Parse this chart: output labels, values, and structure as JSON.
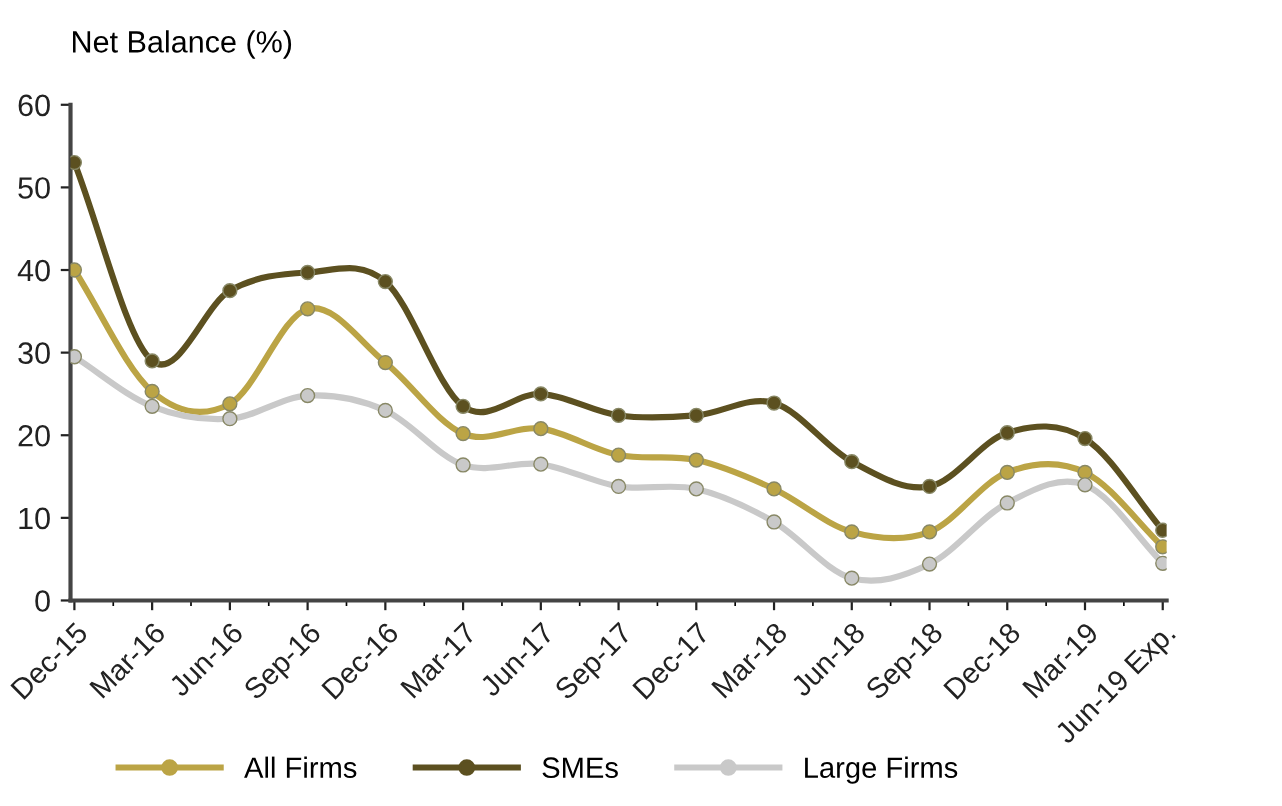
{
  "chart_data": {
    "type": "line",
    "ylabel": "Net Balance (%)",
    "categories": [
      "Dec-15",
      "Mar-16",
      "Jun-16",
      "Sep-16",
      "Dec-16",
      "Mar-17",
      "Jun-17",
      "Sep-17",
      "Dec-17",
      "Mar-18",
      "Jun-18",
      "Sep-18",
      "Dec-18",
      "Mar-19",
      "Jun-19 Exp."
    ],
    "series": [
      {
        "name": "All Firms",
        "color": "#bba445",
        "values": [
          40,
          25.3,
          23.8,
          35.3,
          28.8,
          20.2,
          20.8,
          17.6,
          17,
          13.5,
          8.3,
          8.3,
          15.5,
          15.5,
          6.5
        ]
      },
      {
        "name": "SMEs",
        "color": "#5c5020",
        "values": [
          53,
          29,
          37.5,
          39.7,
          38.6,
          23.5,
          25,
          22.4,
          22.4,
          23.9,
          16.8,
          13.8,
          20.3,
          19.6,
          8.5
        ]
      },
      {
        "name": "Large Firms",
        "color": "#c9c9c9",
        "values": [
          29.5,
          23.5,
          22,
          24.8,
          23,
          16.4,
          16.5,
          13.8,
          13.5,
          9.5,
          2.7,
          4.4,
          11.8,
          14,
          4.5
        ]
      }
    ],
    "ylim": [
      0,
      60
    ],
    "yticks": [
      0,
      10,
      20,
      30,
      40,
      50,
      60
    ],
    "grid": false,
    "legend": "bottom",
    "marker": "circle",
    "line_style": "solid"
  }
}
